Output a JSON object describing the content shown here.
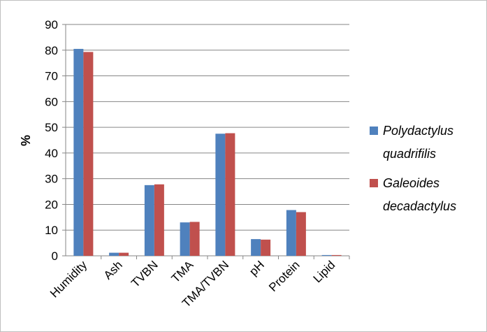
{
  "chart_data": {
    "type": "bar",
    "categories": [
      "Humidity",
      "Ash",
      "TVBN",
      "TMA",
      "TMA/TVBN",
      "pH",
      "Protein",
      "Lipid"
    ],
    "series": [
      {
        "name": "Polydactylus quadrifilis",
        "legend_lines": [
          "Polydactylus",
          "quadrifilis"
        ],
        "color": "#4F81BD",
        "values": [
          80.5,
          1.2,
          27.5,
          13.0,
          47.5,
          6.5,
          17.8,
          0.3
        ]
      },
      {
        "name": "Galeoides decadactylus",
        "legend_lines": [
          "Galeoides",
          "decadactylus"
        ],
        "color": "#C0504D",
        "values": [
          79.3,
          1.2,
          27.8,
          13.2,
          47.7,
          6.3,
          17.0,
          0.3
        ]
      }
    ],
    "ylabel": "%",
    "xlabel": "",
    "title": "",
    "ylim": [
      0,
      90
    ],
    "yticks": [
      0,
      10,
      20,
      30,
      40,
      50,
      60,
      70,
      80,
      90
    ],
    "grid": true,
    "legend_position": "right"
  }
}
